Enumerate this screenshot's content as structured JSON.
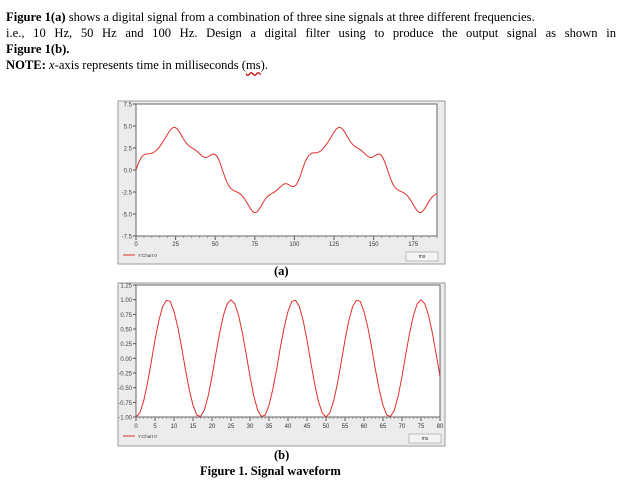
{
  "text": {
    "line1_bold": "Figure 1(a)",
    "line1_rest": " shows a digital signal from a combination of three sine signals at three different frequencies.",
    "line2": "i.e., 10 Hz, 50 Hz and 100 Hz. Design a digital filter using to produce the output signal as shown in",
    "line3": "Figure 1(b).",
    "note_bold": "NOTE:",
    "note_a": " ",
    "note_x": "x",
    "note_b": "-axis represents time in milliseconds (",
    "note_ms": "ms",
    "note_end": ")."
  },
  "captions": {
    "a": "(a)",
    "b": "(b)",
    "figure": "Figure 1. Signal waveform"
  },
  "colors": {
    "signal": "#e0302c",
    "frame": "#9a9a9a",
    "panel": "#ececec"
  },
  "chart_data": [
    {
      "type": "line",
      "title": "",
      "xlabel": "ms",
      "ylabel": "",
      "xlim": [
        0,
        190
      ],
      "ylim": [
        -7.5,
        7.5
      ],
      "xticks": [
        "0",
        "25",
        "50",
        "75",
        "100",
        "125",
        "150",
        "175"
      ],
      "yticks": [
        "7.5",
        "5.0",
        "2.5",
        "0.0",
        "-2.5",
        "-5.0",
        "-7.5"
      ],
      "legend": "Y:Chart 0",
      "series": [
        {
          "x": [
            0,
            1,
            2,
            3,
            4,
            5,
            6,
            7,
            8,
            9,
            10,
            11,
            12,
            13,
            14,
            15,
            16,
            17,
            18,
            19,
            20,
            21,
            22,
            23,
            24,
            25,
            26,
            27,
            28,
            29,
            30,
            31,
            32,
            33,
            34,
            35,
            36,
            37,
            38,
            39,
            40,
            41,
            42,
            43,
            44,
            45,
            46,
            47,
            48,
            49,
            50,
            51,
            52,
            53,
            54,
            55,
            56,
            57,
            58,
            59,
            60,
            61,
            62,
            63,
            64,
            65,
            66,
            67,
            68,
            69,
            70,
            71,
            72,
            73,
            74,
            75,
            76,
            77,
            78,
            79,
            80,
            81,
            82,
            83,
            84,
            85,
            86,
            87,
            88,
            89,
            90,
            91,
            92,
            93,
            94,
            95,
            96,
            97,
            98,
            99,
            100,
            101,
            102,
            103,
            104,
            105,
            106,
            107,
            108,
            109,
            110,
            111,
            112,
            113,
            114,
            115,
            116,
            117,
            118,
            119,
            120,
            121,
            122,
            123,
            124,
            125,
            126,
            127,
            128,
            129,
            130,
            131,
            132,
            133,
            134,
            135,
            136,
            137,
            138,
            139,
            140,
            141,
            142,
            143,
            144,
            145,
            146,
            147,
            148,
            149,
            150,
            151,
            152,
            153,
            154,
            155,
            156,
            157,
            158,
            159,
            160,
            161,
            162,
            163,
            164,
            165,
            166,
            167,
            168,
            169,
            170,
            171,
            172,
            173,
            174,
            175,
            176,
            177,
            178,
            179,
            180,
            181,
            182,
            183,
            184,
            185,
            186,
            187,
            188,
            189,
            190
          ],
          "y": [
            0.0,
            0.52,
            0.97,
            1.32,
            1.57,
            1.72,
            1.8,
            1.83,
            1.84,
            1.86,
            1.9,
            1.98,
            2.11,
            2.26,
            2.46,
            2.68,
            2.93,
            3.2,
            3.49,
            3.79,
            4.09,
            4.37,
            4.61,
            4.77,
            4.84,
            4.81,
            4.67,
            4.44,
            4.15,
            3.83,
            3.52,
            3.24,
            3.0,
            2.81,
            2.66,
            2.54,
            2.43,
            2.32,
            2.19,
            2.04,
            1.87,
            1.7,
            1.56,
            1.46,
            1.42,
            1.46,
            1.56,
            1.68,
            1.78,
            1.82,
            1.76,
            1.58,
            1.26,
            0.83,
            0.32,
            -0.22,
            -0.75,
            -1.22,
            -1.61,
            -1.91,
            -2.12,
            -2.27,
            -2.36,
            -2.44,
            -2.52,
            -2.62,
            -2.76,
            -2.93,
            -3.15,
            -3.41,
            -3.7,
            -4.01,
            -4.31,
            -4.58,
            -4.76,
            -4.84,
            -4.79,
            -4.64,
            -4.39,
            -4.08,
            -3.76,
            -3.47,
            -3.22,
            -3.02,
            -2.87,
            -2.75,
            -2.65,
            -2.55,
            -2.42,
            -2.28,
            -2.11,
            -1.93,
            -1.77,
            -1.64,
            -1.56,
            -1.56,
            -1.63,
            -1.74,
            -1.84,
            -1.89,
            -1.85,
            -1.71,
            -1.41,
            -1.0,
            -0.51,
            0.02,
            0.54,
            1.01,
            1.38,
            1.65,
            1.81,
            1.91,
            1.94,
            1.95,
            1.96,
            2.01,
            2.1,
            2.23,
            2.41,
            2.62,
            2.86,
            3.12,
            3.41,
            3.71,
            4.01,
            4.31,
            4.57,
            4.74,
            4.84,
            4.83,
            4.72,
            4.51,
            4.23,
            3.91,
            3.6,
            3.31,
            3.06,
            2.86,
            2.71,
            2.58,
            2.47,
            2.37,
            2.25,
            2.1,
            1.93,
            1.76,
            1.6,
            1.48,
            1.42,
            1.43,
            1.52,
            1.64,
            1.75,
            1.82,
            1.79,
            1.63,
            1.34,
            0.93,
            0.43,
            -0.11,
            -0.64,
            -1.13,
            -1.54,
            -1.86,
            -2.08,
            -2.24,
            -2.34,
            -2.42,
            -2.49,
            -2.59,
            -2.71,
            -2.88,
            -3.08,
            -3.33,
            -3.61,
            -3.92,
            -4.23,
            -4.51,
            -4.72,
            -4.83,
            -4.82,
            -4.69,
            -4.47,
            -4.17,
            -3.85,
            -3.54,
            -3.28,
            -3.06,
            -2.9,
            -2.78,
            -2.67
          ]
        }
      ]
    },
    {
      "type": "line",
      "title": "",
      "xlabel": "ms",
      "ylabel": "",
      "xlim": [
        0,
        80
      ],
      "ylim": [
        -1.0,
        1.25
      ],
      "xticks": [
        "0",
        "5",
        "10",
        "15",
        "20",
        "25",
        "30",
        "35",
        "40",
        "45",
        "50",
        "55",
        "60",
        "65",
        "70",
        "75",
        "80"
      ],
      "yticks": [
        "1.25",
        "1.00",
        "0.75",
        "0.50",
        "0.25",
        "0.00",
        "-0.25",
        "-0.50",
        "-0.75",
        "-1.00"
      ],
      "legend": "Y:Chart 0",
      "series": [
        {
          "x": [
            0,
            1,
            2,
            3,
            4,
            5,
            6,
            7,
            8,
            9,
            10,
            11,
            12,
            13,
            14,
            15,
            16,
            17,
            18,
            19,
            20,
            21,
            22,
            23,
            24,
            25,
            26,
            27,
            28,
            29,
            30,
            31,
            32,
            33,
            34,
            35,
            36,
            37,
            38,
            39,
            40,
            41,
            42,
            43,
            44,
            45,
            46,
            47,
            48,
            49,
            50,
            51,
            52,
            53,
            54,
            55,
            56,
            57,
            58,
            59,
            60,
            61,
            62,
            63,
            64,
            65,
            66,
            67,
            68,
            69,
            70,
            71,
            72,
            73,
            74,
            75,
            76,
            77,
            78,
            79,
            80
          ],
          "y": [
            -1.0,
            -0.93,
            -0.73,
            -0.43,
            -0.07,
            0.31,
            0.64,
            0.88,
            0.99,
            0.97,
            0.8,
            0.53,
            0.19,
            -0.19,
            -0.53,
            -0.8,
            -0.97,
            -0.99,
            -0.88,
            -0.64,
            -0.31,
            0.07,
            0.43,
            0.73,
            0.93,
            1.0,
            0.93,
            0.73,
            0.43,
            0.07,
            -0.31,
            -0.64,
            -0.88,
            -0.99,
            -0.97,
            -0.8,
            -0.53,
            -0.19,
            0.19,
            0.53,
            0.8,
            0.97,
            0.99,
            0.88,
            0.64,
            0.31,
            -0.07,
            -0.43,
            -0.73,
            -0.93,
            -1.0,
            -0.93,
            -0.73,
            -0.43,
            -0.07,
            0.31,
            0.64,
            0.88,
            0.99,
            0.97,
            0.8,
            0.53,
            0.19,
            -0.19,
            -0.53,
            -0.8,
            -0.97,
            -0.99,
            -0.88,
            -0.64,
            -0.31,
            0.07,
            0.43,
            0.73,
            0.93,
            1.0,
            0.93,
            0.73,
            0.43,
            0.07,
            -0.31
          ]
        }
      ]
    }
  ]
}
